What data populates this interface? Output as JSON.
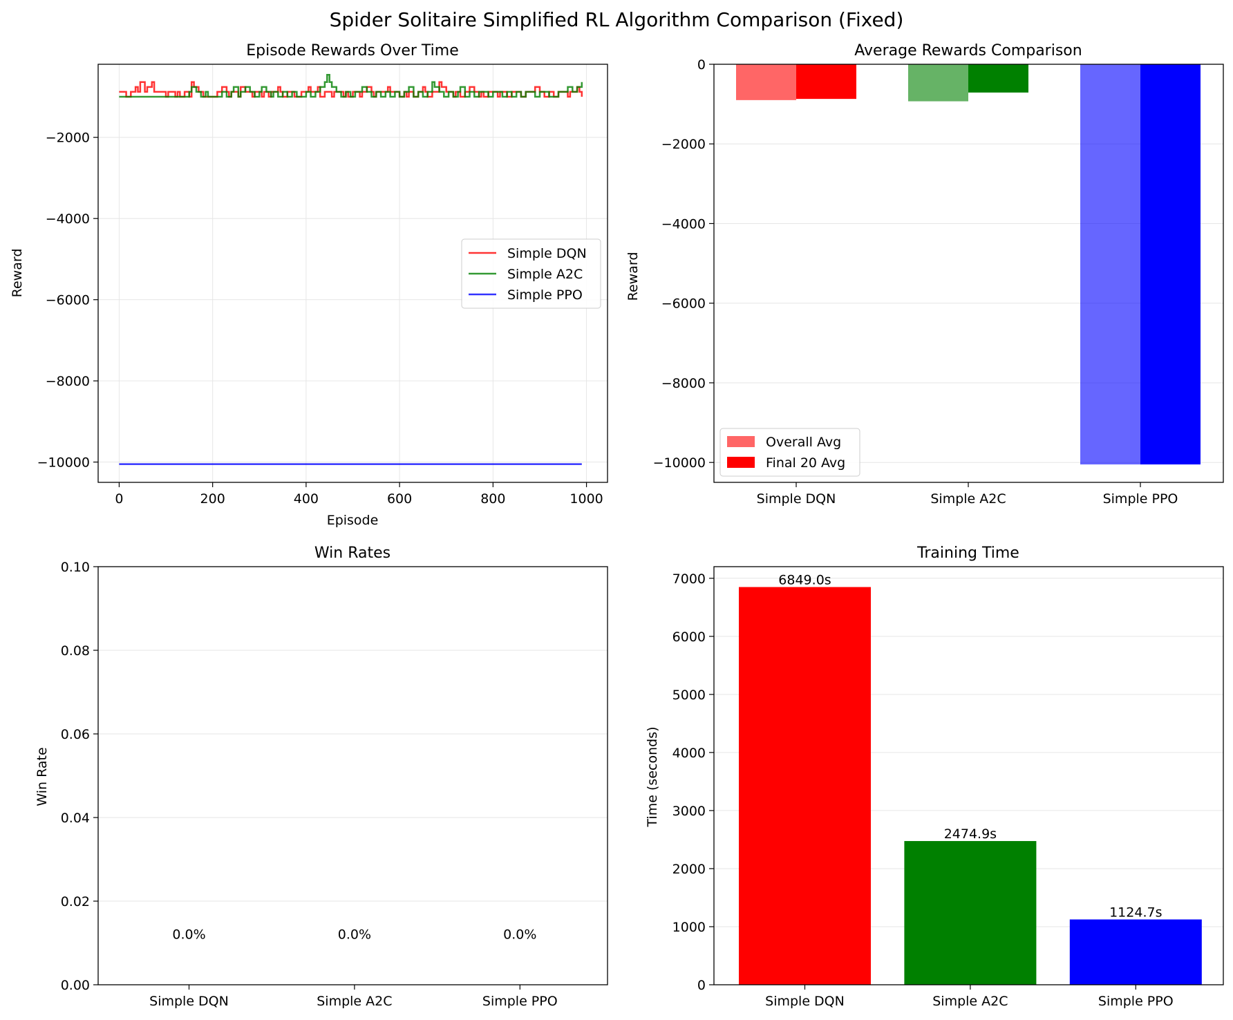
{
  "figure": {
    "suptitle": "Spider Solitaire Simplified RL Algorithm Comparison (Fixed)"
  },
  "chart_data": [
    {
      "type": "line",
      "title": "Episode Rewards Over Time",
      "xlabel": "Episode",
      "ylabel": "Reward",
      "xlim": [
        -45,
        1045
      ],
      "ylim": [
        -10500,
        -200
      ],
      "xticks": [
        0,
        200,
        400,
        600,
        800,
        1000
      ],
      "yticks": [
        -2000,
        -4000,
        -6000,
        -8000,
        -10000
      ],
      "grid": true,
      "legend_position": "center-right",
      "series": [
        {
          "name": "Simple DQN",
          "color": "#ff0000",
          "x": [
            0,
            10,
            15,
            25,
            35,
            40,
            45,
            55,
            60,
            70,
            75,
            80,
            90,
            100,
            105,
            110,
            120,
            125,
            130,
            140,
            150,
            155,
            160,
            170,
            175,
            180,
            185,
            190,
            200,
            210,
            215,
            220,
            230,
            235,
            240,
            250,
            255,
            260,
            270,
            280,
            285,
            290,
            300,
            305,
            310,
            320,
            325,
            330,
            340,
            345,
            350,
            360,
            370,
            375,
            380,
            390,
            400,
            405,
            410,
            420,
            425,
            430,
            440,
            450,
            455,
            460,
            470,
            480,
            485,
            490,
            500,
            510,
            515,
            520,
            530,
            540,
            545,
            550,
            560,
            570,
            575,
            580,
            590,
            600,
            610,
            615,
            620,
            630,
            640,
            650,
            655,
            660,
            670,
            680,
            685,
            690,
            700,
            710,
            715,
            720,
            730,
            740,
            745,
            750,
            760,
            770,
            775,
            780,
            790,
            800,
            810,
            815,
            820,
            830,
            840,
            850,
            860,
            865,
            870,
            880,
            890,
            900,
            910,
            915,
            920,
            930,
            940,
            950,
            960,
            965,
            970,
            980,
            985,
            990
          ],
          "y": [
            -880,
            -880,
            -1000,
            -880,
            -760,
            -880,
            -640,
            -880,
            -760,
            -640,
            -880,
            -880,
            -880,
            -1000,
            -880,
            -880,
            -1000,
            -880,
            -1000,
            -880,
            -1000,
            -640,
            -760,
            -880,
            -880,
            -1000,
            -1000,
            -1000,
            -1000,
            -880,
            -880,
            -760,
            -880,
            -1000,
            -880,
            -880,
            -1000,
            -760,
            -880,
            -880,
            -1000,
            -880,
            -880,
            -1000,
            -880,
            -1000,
            -880,
            -880,
            -760,
            -880,
            -1000,
            -880,
            -880,
            -1000,
            -1000,
            -880,
            -880,
            -760,
            -880,
            -880,
            -760,
            -1000,
            -880,
            -880,
            -1000,
            -880,
            -880,
            -1000,
            -880,
            -1000,
            -880,
            -880,
            -1000,
            -880,
            -760,
            -880,
            -1000,
            -880,
            -880,
            -880,
            -760,
            -880,
            -880,
            -1000,
            -880,
            -1000,
            -880,
            -1000,
            -880,
            -760,
            -880,
            -1000,
            -880,
            -880,
            -640,
            -760,
            -880,
            -880,
            -1000,
            -880,
            -1000,
            -880,
            -880,
            -760,
            -880,
            -1000,
            -880,
            -1000,
            -880,
            -880,
            -1000,
            -880,
            -880,
            -1000,
            -880,
            -880,
            -1000,
            -1000,
            -880,
            -880,
            -760,
            -880,
            -1000,
            -1000,
            -880,
            -1000,
            -880,
            -880,
            -1000,
            -880,
            -880,
            -760,
            -880,
            -1000
          ]
        },
        {
          "name": "Simple A2C",
          "color": "#008000",
          "x": [
            0,
            20,
            40,
            60,
            80,
            100,
            120,
            140,
            150,
            155,
            165,
            175,
            185,
            190,
            200,
            210,
            220,
            230,
            240,
            245,
            255,
            260,
            270,
            280,
            290,
            300,
            305,
            315,
            325,
            330,
            340,
            350,
            360,
            370,
            380,
            390,
            400,
            410,
            420,
            430,
            440,
            445,
            450,
            455,
            465,
            475,
            485,
            495,
            505,
            515,
            520,
            530,
            540,
            550,
            560,
            570,
            580,
            590,
            600,
            610,
            620,
            630,
            640,
            650,
            660,
            670,
            675,
            685,
            695,
            705,
            715,
            725,
            730,
            740,
            750,
            760,
            770,
            780,
            790,
            800,
            810,
            820,
            830,
            840,
            850,
            860,
            870,
            880,
            890,
            900,
            910,
            920,
            930,
            940,
            950,
            960,
            970,
            980,
            990
          ],
          "y": [
            -1000,
            -1000,
            -1000,
            -1000,
            -1000,
            -1000,
            -1000,
            -1000,
            -880,
            -760,
            -880,
            -1000,
            -880,
            -1000,
            -1000,
            -1000,
            -880,
            -1000,
            -880,
            -760,
            -1000,
            -880,
            -760,
            -880,
            -1000,
            -880,
            -760,
            -880,
            -1000,
            -880,
            -1000,
            -880,
            -1000,
            -880,
            -1000,
            -1000,
            -880,
            -1000,
            -880,
            -760,
            -640,
            -460,
            -640,
            -760,
            -880,
            -1000,
            -880,
            -1000,
            -880,
            -880,
            -760,
            -880,
            -1000,
            -880,
            -1000,
            -880,
            -1000,
            -880,
            -1000,
            -880,
            -760,
            -1000,
            -880,
            -1000,
            -880,
            -640,
            -760,
            -880,
            -1000,
            -880,
            -1000,
            -880,
            -760,
            -1000,
            -880,
            -1000,
            -880,
            -880,
            -1000,
            -880,
            -880,
            -1000,
            -880,
            -1000,
            -880,
            -1000,
            -880,
            -880,
            -1000,
            -880,
            -880,
            -1000,
            -1000,
            -880,
            -880,
            -760,
            -880,
            -760,
            -640
          ]
        },
        {
          "name": "Simple PPO",
          "color": "#0000ff",
          "x": [
            0,
            990
          ],
          "y": [
            -10050,
            -10050
          ]
        }
      ]
    },
    {
      "type": "bar",
      "title": "Average Rewards Comparison",
      "xlabel": "",
      "ylabel": "Reward",
      "categories": [
        "Simple DQN",
        "Simple A2C",
        "Simple PPO"
      ],
      "ylim": [
        -10500,
        0
      ],
      "yticks": [
        0,
        -2000,
        -4000,
        -6000,
        -8000,
        -10000
      ],
      "grid": true,
      "legend_position": "lower-left",
      "series": [
        {
          "name": "Overall Avg",
          "values": [
            -900,
            -930,
            -10050
          ],
          "alpha": 0.6
        },
        {
          "name": "Final 20 Avg",
          "values": [
            -870,
            -710,
            -10050
          ],
          "alpha": 1.0
        }
      ],
      "colors": [
        "#ff0000",
        "#008000",
        "#0000ff"
      ]
    },
    {
      "type": "bar",
      "title": "Win Rates",
      "xlabel": "",
      "ylabel": "Win Rate",
      "categories": [
        "Simple DQN",
        "Simple A2C",
        "Simple PPO"
      ],
      "values": [
        0.0,
        0.0,
        0.0
      ],
      "labels": [
        "0.0%",
        "0.0%",
        "0.0%"
      ],
      "ylim": [
        0,
        0.1
      ],
      "yticks": [
        "0.00",
        "0.02",
        "0.04",
        "0.06",
        "0.08",
        "0.10"
      ],
      "grid": true,
      "colors": [
        "#ff0000",
        "#008000",
        "#0000ff"
      ]
    },
    {
      "type": "bar",
      "title": "Training Time",
      "xlabel": "",
      "ylabel": "Time (seconds)",
      "categories": [
        "Simple DQN",
        "Simple A2C",
        "Simple PPO"
      ],
      "values": [
        6849.0,
        2474.9,
        1124.7
      ],
      "labels": [
        "6849.0s",
        "2474.9s",
        "1124.7s"
      ],
      "ylim": [
        0,
        7200
      ],
      "yticks": [
        0,
        1000,
        2000,
        3000,
        4000,
        5000,
        6000,
        7000
      ],
      "grid": true,
      "colors": [
        "#ff0000",
        "#008000",
        "#0000ff"
      ]
    }
  ]
}
